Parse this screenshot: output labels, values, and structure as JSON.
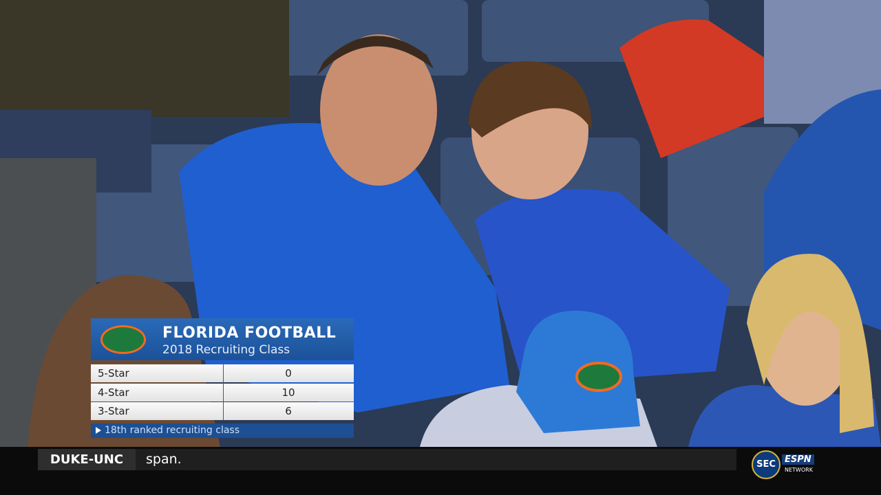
{
  "graphic": {
    "title": "FLORIDA FOOTBALL",
    "subtitle": "2018 Recruiting Class",
    "rows": [
      [
        "5-Star",
        0
      ],
      [
        "4-Star",
        10
      ],
      [
        "3-Star",
        6
      ]
    ],
    "footer": "18th ranked recruiting class"
  },
  "ticker": {
    "label": "DUKE-UNC",
    "text": "span."
  },
  "network": {
    "conference": "SEC",
    "brand": "ESPN",
    "sub": "NETWORK"
  }
}
